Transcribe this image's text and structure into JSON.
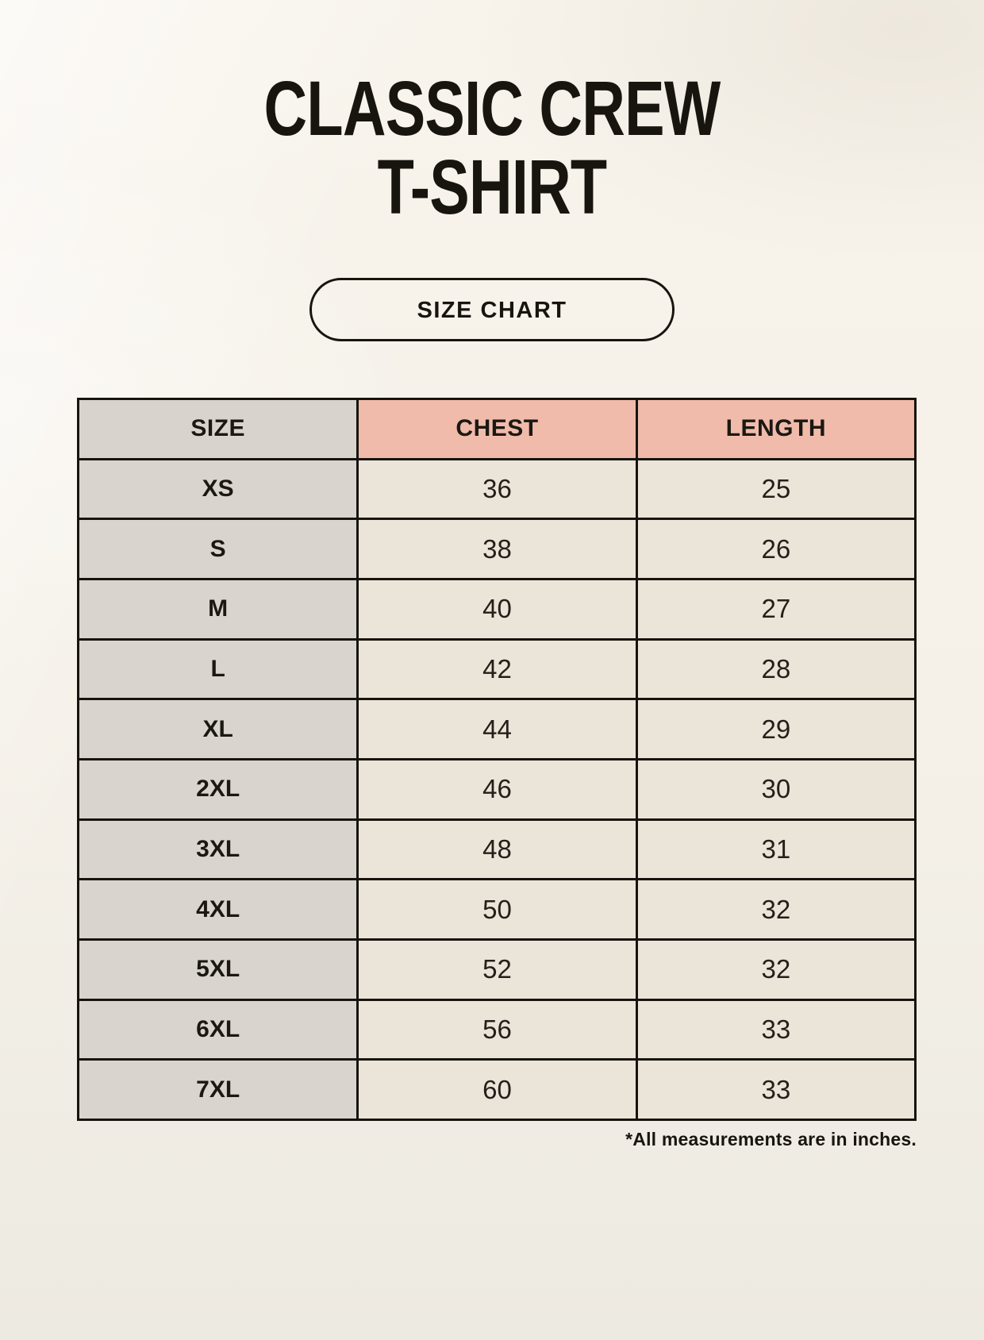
{
  "page": {
    "title_line1": "CLASSIC CREW",
    "title_line2": "T-SHIRT",
    "badge_label": "SIZE CHART",
    "footnote": "*All measurements are in inches."
  },
  "table": {
    "headers": [
      "SIZE",
      "CHEST",
      "LENGTH"
    ],
    "rows": [
      {
        "size": "XS",
        "chest": "36",
        "length": "25"
      },
      {
        "size": "S",
        "chest": "38",
        "length": "26"
      },
      {
        "size": "M",
        "chest": "40",
        "length": "27"
      },
      {
        "size": "L",
        "chest": "42",
        "length": "28"
      },
      {
        "size": "XL",
        "chest": "44",
        "length": "29"
      },
      {
        "size": "2XL",
        "chest": "46",
        "length": "30"
      },
      {
        "size": "3XL",
        "chest": "48",
        "length": "31"
      },
      {
        "size": "4XL",
        "chest": "50",
        "length": "32"
      },
      {
        "size": "5XL",
        "chest": "52",
        "length": "32"
      },
      {
        "size": "6XL",
        "chest": "56",
        "length": "33"
      },
      {
        "size": "7XL",
        "chest": "60",
        "length": "33"
      }
    ]
  },
  "colors": {
    "page_background": "#f5f1e9",
    "header_accent": "#f0bbaa",
    "size_column": "#dad4ce",
    "value_cell": "#ebe4d8",
    "border": "#17140f",
    "text": "#18150f"
  },
  "chart_data": {
    "type": "table",
    "title": "CLASSIC CREW T-SHIRT — SIZE CHART",
    "columns": [
      "SIZE",
      "CHEST",
      "LENGTH"
    ],
    "units": "inches",
    "rows": [
      [
        "XS",
        36,
        25
      ],
      [
        "S",
        38,
        26
      ],
      [
        "M",
        40,
        27
      ],
      [
        "L",
        42,
        28
      ],
      [
        "XL",
        44,
        29
      ],
      [
        "2XL",
        46,
        30
      ],
      [
        "3XL",
        48,
        31
      ],
      [
        "4XL",
        50,
        32
      ],
      [
        "5XL",
        52,
        32
      ],
      [
        "6XL",
        56,
        33
      ],
      [
        "7XL",
        60,
        33
      ]
    ]
  }
}
